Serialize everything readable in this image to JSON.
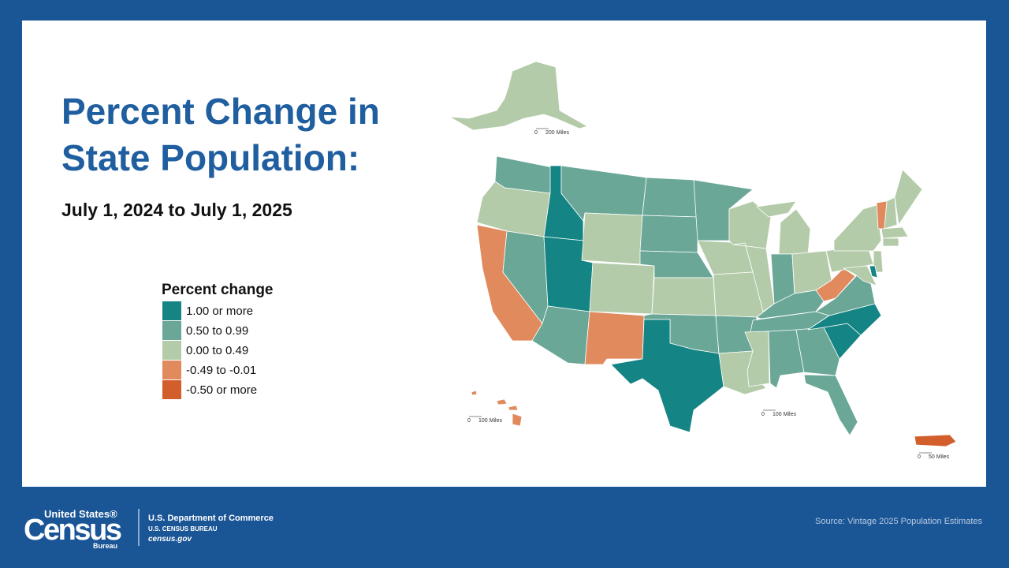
{
  "header": {
    "title_line1": "Percent Change in",
    "title_line2": "State Population:",
    "subtitle": "July 1, 2024 to July 1, 2025"
  },
  "legend": {
    "title": "Percent change",
    "items": [
      {
        "label": "1.00 or more",
        "color": "#148484"
      },
      {
        "label": "0.50 to 0.99",
        "color": "#6aa797"
      },
      {
        "label": "0.00 to 0.49",
        "color": "#b4cba9"
      },
      {
        "label": "-0.49 to -0.01",
        "color": "#e08a5d"
      },
      {
        "label": "-0.50 or more",
        "color": "#d25e2b"
      }
    ]
  },
  "scale_bars": [
    {
      "start": "0",
      "end": "200 Miles"
    },
    {
      "start": "0",
      "end": "100 Miles"
    },
    {
      "start": "0",
      "end": "100 Miles"
    },
    {
      "start": "0",
      "end": "50 Miles"
    }
  ],
  "footer": {
    "logo_top": "United States®",
    "logo_main": "Census",
    "logo_sub": "Bureau",
    "dept": "U.S. Department of Commerce",
    "bureau": "U.S. CENSUS BUREAU",
    "url": "census.gov",
    "source": "Source: Vintage 2025 Population Estimates"
  }
}
